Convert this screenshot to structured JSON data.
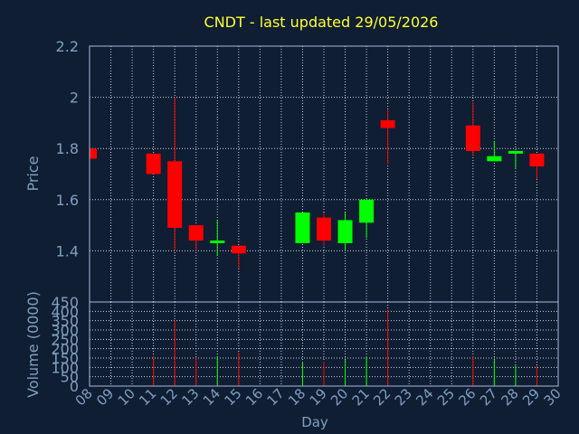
{
  "chart_data": {
    "title": "CNDT - last updated 29/05/2026",
    "xlabel": "Day",
    "price_panel": {
      "type": "candlestick",
      "ylabel": "Price",
      "ylim": [
        1.2,
        2.2
      ],
      "yticks": [
        "1.4",
        "1.6",
        "1.8",
        "2",
        "2.2"
      ],
      "grid": true
    },
    "volume_panel": {
      "type": "bar",
      "ylabel": "Volume (0000)",
      "ylim": [
        0,
        450
      ],
      "yticks": [
        "0",
        "50",
        "100",
        "150",
        "200",
        "250",
        "300",
        "350",
        "400",
        "450"
      ],
      "grid": true
    },
    "x_ticks": [
      "08",
      "09",
      "10",
      "11",
      "12",
      "13",
      "14",
      "15",
      "16",
      "17",
      "18",
      "19",
      "20",
      "21",
      "22",
      "23",
      "24",
      "25",
      "26",
      "27",
      "28",
      "29",
      "30"
    ],
    "up_color": "#00ff00",
    "down_color": "#ff0000",
    "candles": [
      {
        "day": "08",
        "open": 1.8,
        "high": 1.8,
        "low": 1.76,
        "close": 1.76,
        "volume": 0
      },
      {
        "day": "11",
        "open": 1.78,
        "high": 1.78,
        "low": 1.7,
        "close": 1.7,
        "volume": 160
      },
      {
        "day": "12",
        "open": 1.75,
        "high": 2.0,
        "low": 1.4,
        "close": 1.49,
        "volume": 350
      },
      {
        "day": "13",
        "open": 1.5,
        "high": 1.5,
        "low": 1.4,
        "close": 1.44,
        "volume": 150
      },
      {
        "day": "14",
        "open": 1.43,
        "high": 1.52,
        "low": 1.38,
        "close": 1.44,
        "volume": 160
      },
      {
        "day": "15",
        "open": 1.42,
        "high": 1.42,
        "low": 1.33,
        "close": 1.39,
        "volume": 180
      },
      {
        "day": "18",
        "open": 1.43,
        "high": 1.55,
        "low": 1.43,
        "close": 1.55,
        "volume": 130
      },
      {
        "day": "19",
        "open": 1.53,
        "high": 1.55,
        "low": 1.42,
        "close": 1.44,
        "volume": 130
      },
      {
        "day": "20",
        "open": 1.43,
        "high": 1.55,
        "low": 1.4,
        "close": 1.52,
        "volume": 140
      },
      {
        "day": "21",
        "open": 1.51,
        "high": 1.6,
        "low": 1.45,
        "close": 1.6,
        "volume": 160
      },
      {
        "day": "22",
        "open": 1.91,
        "high": 1.95,
        "low": 1.74,
        "close": 1.88,
        "volume": 410
      },
      {
        "day": "26",
        "open": 1.89,
        "high": 1.98,
        "low": 1.77,
        "close": 1.79,
        "volume": 160
      },
      {
        "day": "27",
        "open": 1.75,
        "high": 1.83,
        "low": 1.75,
        "close": 1.77,
        "volume": 140
      },
      {
        "day": "28",
        "open": 1.78,
        "high": 1.79,
        "low": 1.72,
        "close": 1.79,
        "volume": 110
      },
      {
        "day": "29",
        "open": 1.78,
        "high": 1.78,
        "low": 1.68,
        "close": 1.73,
        "volume": 110
      }
    ]
  }
}
